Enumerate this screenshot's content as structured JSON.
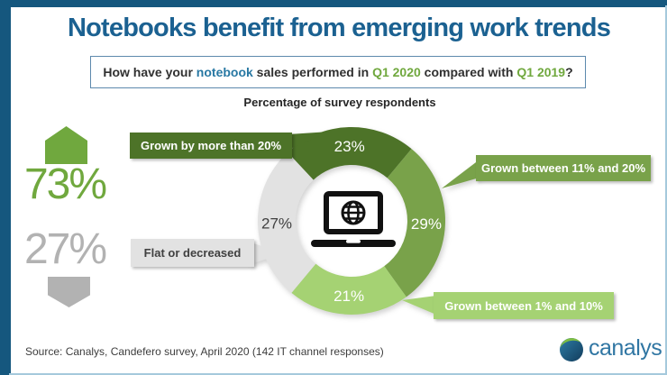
{
  "header": {
    "title": "Notebooks benefit from emerging work trends"
  },
  "question": {
    "full_text": "How have your notebook sales performed in Q1 2020 compared with Q1 2019?",
    "parts": [
      {
        "text": "How have your ",
        "color": "#303030"
      },
      {
        "text": "notebook",
        "color": "#2878a3"
      },
      {
        "text": " sales performed in ",
        "color": "#303030"
      },
      {
        "text": "Q1 2020",
        "color": "#70a83e"
      },
      {
        "text": " compared with ",
        "color": "#303030"
      },
      {
        "text": "Q1 2019",
        "color": "#70a83e"
      },
      {
        "text": "?",
        "color": "#303030"
      }
    ]
  },
  "summary": {
    "grown": {
      "value": "73%",
      "direction": "up",
      "color": "#70a83e"
    },
    "flat_or_decreased": {
      "value": "27%",
      "direction": "down",
      "color": "#b2b2b2"
    }
  },
  "chart_data": {
    "type": "pie",
    "donut": true,
    "title": "Percentage of survey respondents",
    "start_angle_deg": -43,
    "center_icon": "laptop-globe",
    "legend_position": "callouts",
    "segments": [
      {
        "label": "Grown by more than 20%",
        "value": 23,
        "unit": "%",
        "color": "#4d7328",
        "label_text_color": "#ffffff"
      },
      {
        "label": "Grown between 11% and 20%",
        "value": 29,
        "unit": "%",
        "color": "#79a24a",
        "label_text_color": "#ffffff"
      },
      {
        "label": "Grown between 1% and 10%",
        "value": 21,
        "unit": "%",
        "color": "#a5d273",
        "label_text_color": "#ffffff"
      },
      {
        "label": "Flat or decreased",
        "value": 27,
        "unit": "%",
        "color": "#e2e2e2",
        "label_text_color": "#404040"
      }
    ]
  },
  "footer": {
    "source": "Source: Canalys, Candefero survey, April 2020 (142 IT channel responses)",
    "logo_text": "canalys"
  }
}
